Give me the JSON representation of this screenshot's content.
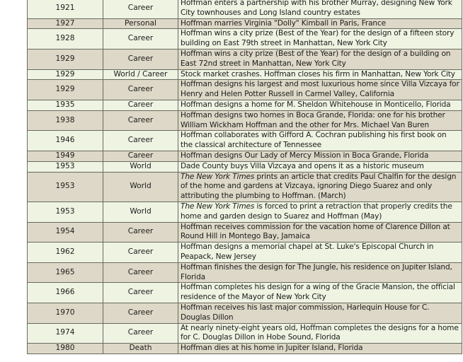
{
  "table": {
    "row_colors": {
      "light": "#eef3e2",
      "dark": "#ddd8c7"
    },
    "rows": [
      {
        "year": "1921",
        "category": "Career",
        "pre": "",
        "italic": "",
        "text": "Hoffman enters a partnership with his brother Murray, designing New York City townhouses and Long Island country estates"
      },
      {
        "year": "1927",
        "category": "Personal",
        "pre": "",
        "italic": "",
        "text": "Hoffman marries Virginia \"Dolly\" Kimball in Paris, France"
      },
      {
        "year": "1928",
        "category": "Career",
        "pre": "",
        "italic": "",
        "text": "Hoffman wins a city prize (Best of the Year) for the design of a fifteen story building on East 79th street in Manhattan, New York City"
      },
      {
        "year": "1929",
        "category": "Career",
        "pre": "",
        "italic": "",
        "text": "Hoffman wins a city prize (Best of the Year) for the design of a building on East 72nd street in Manhattan, New York City"
      },
      {
        "year": "1929",
        "category": "World / Career",
        "pre": "",
        "italic": "",
        "text": "Stock market crashes. Hoffman closes his firm in Manhattan, New York City"
      },
      {
        "year": "1929",
        "category": "Career",
        "pre": "",
        "italic": "",
        "text": "Hoffman designs his largest and most luxurious home since Villa Vizcaya for Henry and Helen Potter Russell in Carmel Valley, California"
      },
      {
        "year": "1935",
        "category": "Career",
        "pre": "",
        "italic": "",
        "text": "Hoffman designs a home for M. Sheldon Whitehouse in Monticello, Florida"
      },
      {
        "year": "1938",
        "category": "Career",
        "pre": "",
        "italic": "",
        "text": "Hoffman designs two homes in Boca Grande, Florida: one for his brother William Wickham Hoffman and the other for Mrs. Michael Van Buren"
      },
      {
        "year": "1946",
        "category": "Career",
        "pre": "",
        "italic": "",
        "text": "Hoffman collaborates with Gifford A. Cochran publishing his first book on the classical architecture of Tennessee"
      },
      {
        "year": "1949",
        "category": "Career",
        "pre": "",
        "italic": "",
        "text": "Hoffman designs Our Lady of Mercy Mission in  Boca Grande, Florida"
      },
      {
        "year": "1953",
        "category": "World",
        "pre": "",
        "italic": "",
        "text": "Dade County buys Villa Vizcaya and opens it as a historic museum"
      },
      {
        "year": "1953",
        "category": "World",
        "pre": "",
        "italic": "The New York Times",
        "text": " prints an article that credits Paul Chalfin for the design of the home and gardens at Vizcaya, ignoring Diego Suarez and only attributing the plumbing to Hoffman. (March)"
      },
      {
        "year": "1953",
        "category": "World",
        "pre": "",
        "italic": "The New York Times",
        "text": " is forced to print a retraction that properly credits the home and garden design to Suarez and Hoffman (May)"
      },
      {
        "year": "1954",
        "category": "Career",
        "pre": "",
        "italic": "",
        "text": "Hoffman receives commission for the vacation home of Clarence Dillon at Round Hill in Montego Bay, Jamaica"
      },
      {
        "year": "1962",
        "category": "Career",
        "pre": "",
        "italic": "",
        "text": "Hoffman designs a memorial chapel at St. Luke's Episcopal Church in Peapack, New Jersey"
      },
      {
        "year": "1965",
        "category": "Career",
        "pre": "",
        "italic": "",
        "text": "Hoffman finishes the design for The Jungle, his residence on Jupiter Island, Florida"
      },
      {
        "year": "1966",
        "category": "Career",
        "pre": "",
        "italic": "",
        "text": "Hoffman completes his design for a wing of the Gracie Mansion, the official residence of the Mayor of New York City"
      },
      {
        "year": "1970",
        "category": "Career",
        "pre": "",
        "italic": "",
        "text": "Hoffman receives his last major commission, Harlequin House for C. Douglas Dillon"
      },
      {
        "year": "1974",
        "category": "Career",
        "pre": "",
        "italic": "",
        "text": "At nearly ninety-eight years old, Hoffman completes the designs for a home for C. Douglas Dillon in Hobe Sound, Florida"
      },
      {
        "year": "1980",
        "category": "Death",
        "pre": "",
        "italic": "",
        "text": "Hoffman dies at his home in Jupiter Island, Florida"
      }
    ]
  }
}
